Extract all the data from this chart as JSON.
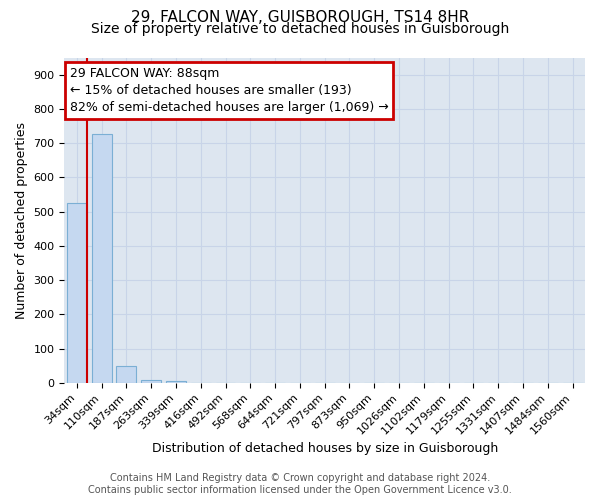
{
  "title1": "29, FALCON WAY, GUISBOROUGH, TS14 8HR",
  "title2": "Size of property relative to detached houses in Guisborough",
  "xlabel": "Distribution of detached houses by size in Guisborough",
  "ylabel": "Number of detached properties",
  "categories": [
    "34sqm",
    "110sqm",
    "187sqm",
    "263sqm",
    "339sqm",
    "416sqm",
    "492sqm",
    "568sqm",
    "644sqm",
    "721sqm",
    "797sqm",
    "873sqm",
    "950sqm",
    "1026sqm",
    "1102sqm",
    "1179sqm",
    "1255sqm",
    "1331sqm",
    "1407sqm",
    "1484sqm",
    "1560sqm"
  ],
  "values": [
    525,
    727,
    48,
    8,
    5,
    0,
    0,
    0,
    0,
    0,
    0,
    0,
    0,
    0,
    0,
    0,
    0,
    0,
    0,
    0,
    0
  ],
  "bar_color": "#c5d8f0",
  "bar_edge_color": "#7bafd4",
  "vline_color": "#cc0000",
  "annotation_line1": "29 FALCON WAY: 88sqm",
  "annotation_line2": "← 15% of detached houses are smaller (193)",
  "annotation_line3": "82% of semi-detached houses are larger (1,069) →",
  "annotation_box_color": "#cc0000",
  "annotation_fill": "white",
  "ylim": [
    0,
    950
  ],
  "yticks": [
    0,
    100,
    200,
    300,
    400,
    500,
    600,
    700,
    800,
    900
  ],
  "grid_color": "#c8d4e8",
  "background_color": "#dde6f0",
  "footer1": "Contains HM Land Registry data © Crown copyright and database right 2024.",
  "footer2": "Contains public sector information licensed under the Open Government Licence v3.0.",
  "title1_fontsize": 11,
  "title2_fontsize": 10,
  "xlabel_fontsize": 9,
  "ylabel_fontsize": 9,
  "tick_fontsize": 8,
  "annotation_fontsize": 9,
  "footer_fontsize": 7
}
